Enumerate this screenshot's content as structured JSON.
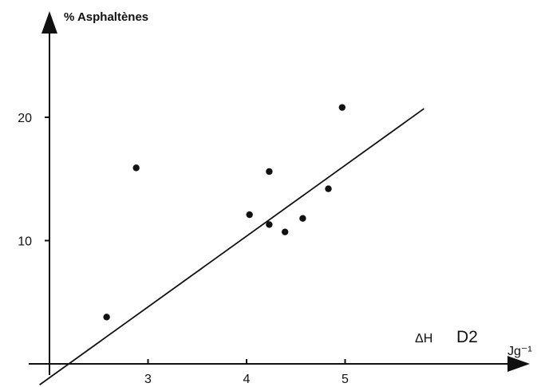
{
  "chart_data": {
    "type": "scatter",
    "title": "",
    "ylabel": "% Asphaltènes",
    "xlabel_parts": [
      "ΔH",
      "D2",
      "Jg⁻¹"
    ],
    "xlim": [
      2.0,
      6.0
    ],
    "ylim": [
      0,
      25
    ],
    "x_ticks": [
      {
        "value": 3,
        "label": "3"
      },
      {
        "value": 4,
        "label": "4"
      },
      {
        "value": 5,
        "label": "5"
      }
    ],
    "y_ticks": [
      {
        "value": 10,
        "label": "10"
      },
      {
        "value": 20,
        "label": "20"
      }
    ],
    "grid": false,
    "series": [
      {
        "points": [
          {
            "x": 2.58,
            "y": 3.8
          },
          {
            "x": 2.88,
            "y": 15.9
          },
          {
            "x": 4.03,
            "y": 12.1
          },
          {
            "x": 4.23,
            "y": 15.6
          },
          {
            "x": 4.23,
            "y": 11.3
          },
          {
            "x": 4.39,
            "y": 10.7
          },
          {
            "x": 4.57,
            "y": 11.8
          },
          {
            "x": 4.83,
            "y": 14.2
          },
          {
            "x": 4.97,
            "y": 20.8
          }
        ]
      }
    ],
    "fit_line": {
      "x_start": 1.9,
      "y_start": -1.7,
      "x_end": 5.8,
      "y_end": 20.7
    },
    "colors": {
      "ink": "#111111",
      "background": "#ffffff"
    }
  }
}
